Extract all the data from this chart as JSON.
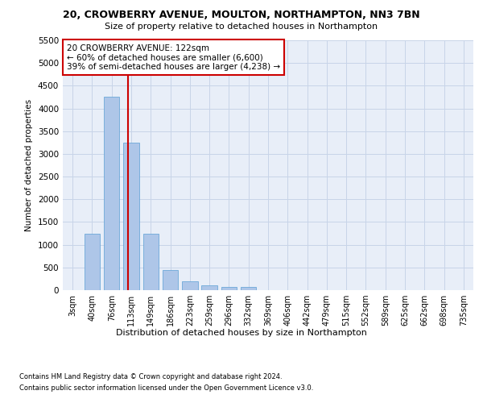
{
  "title1": "20, CROWBERRY AVENUE, MOULTON, NORTHAMPTON, NN3 7BN",
  "title2": "Size of property relative to detached houses in Northampton",
  "xlabel": "Distribution of detached houses by size in Northampton",
  "ylabel": "Number of detached properties",
  "categories": [
    "3sqm",
    "40sqm",
    "76sqm",
    "113sqm",
    "149sqm",
    "186sqm",
    "223sqm",
    "259sqm",
    "296sqm",
    "332sqm",
    "369sqm",
    "406sqm",
    "442sqm",
    "479sqm",
    "515sqm",
    "552sqm",
    "589sqm",
    "625sqm",
    "662sqm",
    "698sqm",
    "735sqm"
  ],
  "values": [
    0,
    1250,
    4250,
    3250,
    1250,
    450,
    200,
    100,
    75,
    75,
    0,
    0,
    0,
    0,
    0,
    0,
    0,
    0,
    0,
    0,
    0
  ],
  "bar_color": "#aec6e8",
  "bar_edge_color": "#5a9fd4",
  "vline_x": 2.85,
  "vline_color": "#cc0000",
  "ylim": [
    0,
    5500
  ],
  "yticks": [
    0,
    500,
    1000,
    1500,
    2000,
    2500,
    3000,
    3500,
    4000,
    4500,
    5000,
    5500
  ],
  "annotation_text": "20 CROWBERRY AVENUE: 122sqm\n← 60% of detached houses are smaller (6,600)\n39% of semi-detached houses are larger (4,238) →",
  "annotation_box_color": "#ffffff",
  "annotation_box_edge": "#cc0000",
  "footnote1": "Contains HM Land Registry data © Crown copyright and database right 2024.",
  "footnote2": "Contains public sector information licensed under the Open Government Licence v3.0.",
  "background_color": "#e8eef8",
  "grid_color": "#c8d4e8"
}
